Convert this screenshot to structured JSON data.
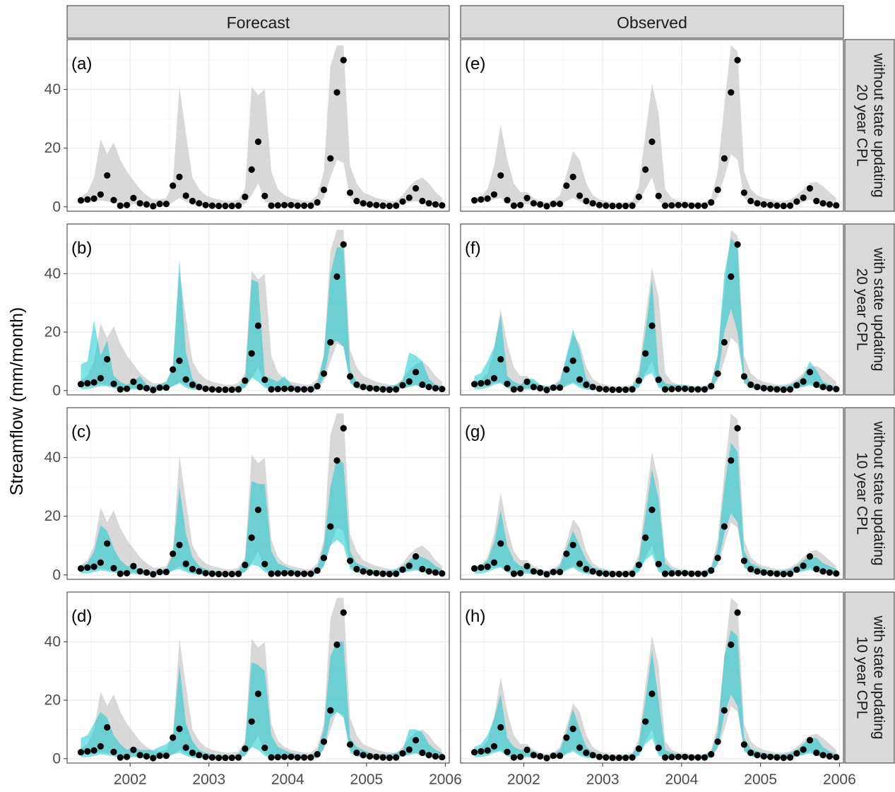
{
  "chart_data": {
    "type": "line",
    "ylabel": "Streamflow (mm/month)",
    "xlabel": "",
    "column_strips": [
      "Forecast",
      "Observed"
    ],
    "row_strips": [
      [
        "without state updating",
        "20 year CPL"
      ],
      [
        "with state updating",
        "20 year CPL"
      ],
      [
        "without state updating",
        "10 year CPL"
      ],
      [
        "with state updating",
        "10 year CPL"
      ]
    ],
    "panel_labels": [
      [
        "(a)",
        "(e)"
      ],
      [
        "(b)",
        "(f)"
      ],
      [
        "(c)",
        "(g)"
      ],
      [
        "(d)",
        "(h)"
      ]
    ],
    "x_ticks": [
      {
        "value": 2002,
        "label": "2002"
      },
      {
        "value": 2003,
        "label": "2003"
      },
      {
        "value": 2004,
        "label": "2004"
      },
      {
        "value": 2005,
        "label": "2005"
      },
      {
        "value": 2006,
        "label": "2006"
      }
    ],
    "y_ticks": [
      {
        "value": 0,
        "label": "0"
      },
      {
        "value": 20,
        "label": "20"
      },
      {
        "value": 40,
        "label": "40"
      }
    ],
    "xlim": [
      2001.2,
      2006.05
    ],
    "ylim": [
      -1.5,
      57
    ],
    "grid": true,
    "x_start": 2001.375,
    "x_step": 0.0833333,
    "observed": [
      2.2,
      2.5,
      2.8,
      4.2,
      10.7,
      2.3,
      0.4,
      0.6,
      3.0,
      1.2,
      0.8,
      0.2,
      1.0,
      1.0,
      7.2,
      10.2,
      3.8,
      2.0,
      1.2,
      0.6,
      0.4,
      0.3,
      0.3,
      0.3,
      0.4,
      3.4,
      12.7,
      22.2,
      3.7,
      0.4,
      0.5,
      0.6,
      0.6,
      0.4,
      0.4,
      0.4,
      1.5,
      5.8,
      16.5,
      39.0,
      50.0,
      4.8,
      2.0,
      1.2,
      0.8,
      0.6,
      0.4,
      0.3,
      0.4,
      1.8,
      3.1,
      6.3,
      2.0,
      1.2,
      0.8,
      0.5
    ],
    "bands": {
      "grey_fc": {
        "lo": [
          1.5,
          1.5,
          1.8,
          2.2,
          1.8,
          1.3,
          0.5,
          0.3,
          1.0,
          0.4,
          0.2,
          0.1,
          0.2,
          0.4,
          1.5,
          3.0,
          1.8,
          0.6,
          0.4,
          0.2,
          0.1,
          0.1,
          0.1,
          0.1,
          0.2,
          1.0,
          4.0,
          8.0,
          2.0,
          0.3,
          0.2,
          0.2,
          0.2,
          0.2,
          0.1,
          0.2,
          0.5,
          3.0,
          10.0,
          16.0,
          15.0,
          3.0,
          1.0,
          0.5,
          0.4,
          0.3,
          0.2,
          0.2,
          0.3,
          1.0,
          1.5,
          2.0,
          1.3,
          0.7,
          0.4,
          0.3
        ],
        "hi": [
          3.5,
          5.0,
          10.0,
          23.0,
          18.0,
          22.0,
          16.0,
          12.0,
          9.0,
          6.0,
          4.0,
          2.5,
          2.5,
          3.0,
          8.0,
          41.0,
          25.0,
          10.0,
          6.0,
          4.0,
          3.0,
          2.5,
          2.0,
          2.0,
          2.5,
          6.0,
          41.0,
          38.0,
          40.0,
          12.0,
          6.0,
          4.0,
          3.0,
          2.5,
          2.0,
          2.0,
          4.0,
          12.0,
          48.0,
          55.0,
          55.0,
          14.0,
          8.0,
          5.0,
          4.0,
          3.0,
          2.5,
          2.0,
          2.0,
          4.0,
          7.0,
          9.0,
          10.0,
          8.0,
          5.0,
          3.0
        ]
      },
      "grey_ob": {
        "lo": [
          1.5,
          1.5,
          1.8,
          2.5,
          3.0,
          1.3,
          0.5,
          0.3,
          1.0,
          0.4,
          0.2,
          0.1,
          0.3,
          0.5,
          2.0,
          3.0,
          1.8,
          0.6,
          0.4,
          0.2,
          0.1,
          0.1,
          0.1,
          0.1,
          0.2,
          1.5,
          6.0,
          10.0,
          2.0,
          0.3,
          0.2,
          0.2,
          0.2,
          0.2,
          0.1,
          0.2,
          0.6,
          3.5,
          10.0,
          18.0,
          16.0,
          3.0,
          1.0,
          0.5,
          0.4,
          0.3,
          0.2,
          0.2,
          0.3,
          1.0,
          1.5,
          2.5,
          1.3,
          0.7,
          0.4,
          0.3
        ],
        "hi": [
          3.0,
          3.5,
          6.0,
          14.0,
          28.0,
          16.0,
          8.0,
          5.0,
          5.0,
          3.0,
          2.0,
          1.5,
          2.0,
          4.0,
          11.0,
          19.0,
          16.0,
          8.0,
          4.0,
          2.5,
          2.0,
          1.5,
          1.5,
          1.5,
          2.0,
          7.0,
          25.0,
          42.0,
          32.0,
          6.0,
          3.0,
          2.0,
          2.0,
          1.5,
          1.5,
          1.5,
          3.0,
          12.0,
          35.0,
          55.0,
          53.0,
          12.0,
          6.0,
          4.0,
          3.0,
          2.5,
          2.0,
          2.0,
          2.5,
          4.0,
          6.0,
          8.0,
          8.5,
          7.0,
          5.0,
          3.0
        ]
      },
      "teal_b": {
        "lo": [
          0.5,
          0.5,
          1.0,
          1.5,
          1.5,
          0.8,
          0.3,
          0.2,
          0.5,
          0.3,
          0.1,
          0.1,
          0.2,
          0.3,
          1.5,
          2.5,
          1.0,
          0.3,
          0.2,
          0.1,
          0.1,
          0.1,
          0.1,
          0.1,
          0.1,
          1.0,
          4.5,
          3.0,
          1.0,
          0.2,
          0.1,
          0.1,
          0.1,
          0.1,
          0.1,
          0.1,
          0.3,
          4.5,
          16.0,
          17.0,
          15.0,
          2.5,
          0.8,
          0.4,
          0.3,
          0.2,
          0.2,
          0.1,
          0.3,
          0.8,
          1.2,
          1.8,
          1.0,
          0.5,
          0.3,
          0.2
        ],
        "hi": [
          9.0,
          10.0,
          24.0,
          12.0,
          17.0,
          5.0,
          3.0,
          2.0,
          3.0,
          5.0,
          2.0,
          1.5,
          2.0,
          3.0,
          8.0,
          45.0,
          13.0,
          4.0,
          2.0,
          1.5,
          1.2,
          1.0,
          1.0,
          1.0,
          1.5,
          3.5,
          38.0,
          37.0,
          5.0,
          4.0,
          3.0,
          5.0,
          2.0,
          1.5,
          1.2,
          1.2,
          2.5,
          12.0,
          40.0,
          49.0,
          49.0,
          7.0,
          3.0,
          2.0,
          2.0,
          1.5,
          1.5,
          1.5,
          2.0,
          3.5,
          13.0,
          12.0,
          10.0,
          4.0,
          2.0,
          1.5
        ]
      },
      "teal_f": {
        "lo": [
          0.5,
          0.5,
          1.0,
          2.0,
          2.5,
          0.8,
          0.3,
          0.2,
          0.5,
          0.3,
          0.1,
          0.1,
          0.2,
          0.3,
          1.5,
          2.5,
          1.0,
          0.3,
          0.2,
          0.1,
          0.1,
          0.1,
          0.1,
          0.1,
          0.1,
          1.0,
          5.0,
          6.0,
          1.0,
          0.2,
          0.1,
          0.1,
          0.1,
          0.1,
          0.1,
          0.1,
          0.3,
          4.5,
          20.0,
          28.0,
          20.0,
          2.5,
          0.8,
          0.4,
          0.3,
          0.2,
          0.2,
          0.1,
          0.3,
          0.8,
          1.2,
          1.8,
          1.0,
          0.5,
          0.3,
          0.2
        ],
        "hi": [
          5.0,
          6.0,
          10.0,
          15.0,
          26.0,
          5.0,
          3.0,
          2.0,
          4.0,
          4.0,
          2.0,
          1.5,
          1.5,
          3.0,
          12.0,
          21.0,
          14.0,
          4.0,
          2.0,
          1.5,
          1.2,
          1.0,
          1.0,
          1.0,
          1.5,
          5.0,
          20.0,
          38.0,
          6.0,
          2.5,
          2.0,
          2.0,
          2.0,
          1.5,
          1.2,
          1.2,
          2.5,
          12.0,
          40.0,
          52.0,
          50.0,
          6.0,
          3.0,
          2.0,
          2.0,
          1.5,
          1.5,
          1.5,
          2.0,
          3.0,
          5.0,
          10.0,
          7.0,
          3.0,
          2.0,
          1.5
        ]
      },
      "teal_c": {
        "lo": [
          0.5,
          0.5,
          1.0,
          1.5,
          1.2,
          0.8,
          0.3,
          0.2,
          0.5,
          0.3,
          0.1,
          0.1,
          0.2,
          0.3,
          1.5,
          2.0,
          1.0,
          0.3,
          0.2,
          0.1,
          0.1,
          0.1,
          0.1,
          0.1,
          0.1,
          1.0,
          3.5,
          3.0,
          1.0,
          0.2,
          0.1,
          0.1,
          0.1,
          0.1,
          0.1,
          0.1,
          0.3,
          3.0,
          10.0,
          12.0,
          10.0,
          2.0,
          0.8,
          0.4,
          0.3,
          0.2,
          0.2,
          0.1,
          0.3,
          0.8,
          1.2,
          1.5,
          1.0,
          0.5,
          0.3,
          0.2
        ],
        "hi": [
          3.0,
          4.0,
          8.0,
          17.0,
          15.0,
          9.0,
          5.0,
          3.0,
          3.0,
          2.0,
          1.5,
          1.2,
          1.5,
          2.0,
          7.0,
          30.0,
          14.0,
          6.0,
          3.0,
          2.0,
          1.5,
          1.2,
          1.0,
          1.0,
          1.5,
          5.0,
          32.0,
          31.0,
          31.0,
          8.0,
          4.0,
          3.0,
          2.0,
          1.5,
          1.2,
          1.2,
          2.5,
          10.0,
          30.0,
          40.0,
          38.0,
          8.0,
          4.0,
          3.0,
          2.0,
          1.5,
          1.5,
          1.5,
          2.0,
          3.0,
          5.0,
          7.0,
          6.0,
          5.0,
          3.0,
          2.0
        ]
      },
      "teal_g": {
        "lo": [
          0.5,
          0.5,
          1.0,
          2.0,
          2.5,
          0.8,
          0.3,
          0.2,
          0.5,
          0.3,
          0.1,
          0.1,
          0.2,
          0.3,
          1.5,
          2.5,
          1.0,
          0.3,
          0.2,
          0.1,
          0.1,
          0.1,
          0.1,
          0.1,
          0.1,
          1.0,
          5.0,
          7.0,
          1.0,
          0.2,
          0.1,
          0.1,
          0.1,
          0.1,
          0.1,
          0.1,
          0.3,
          4.0,
          14.0,
          21.0,
          18.0,
          2.5,
          0.8,
          0.4,
          0.3,
          0.2,
          0.2,
          0.1,
          0.3,
          0.8,
          1.2,
          1.8,
          1.0,
          0.5,
          0.3,
          0.2
        ],
        "hi": [
          2.5,
          3.0,
          5.0,
          11.0,
          22.0,
          10.0,
          5.0,
          3.0,
          3.0,
          2.0,
          1.5,
          1.2,
          1.5,
          3.0,
          9.0,
          15.0,
          10.0,
          5.0,
          2.5,
          2.0,
          1.5,
          1.2,
          1.0,
          1.0,
          1.5,
          5.0,
          20.0,
          36.0,
          26.0,
          4.0,
          2.0,
          1.5,
          1.5,
          1.2,
          1.2,
          1.2,
          2.5,
          9.0,
          30.0,
          45.0,
          42.0,
          8.0,
          4.0,
          3.0,
          2.0,
          1.5,
          1.5,
          1.5,
          2.0,
          3.0,
          5.0,
          6.0,
          6.0,
          4.0,
          3.0,
          2.0
        ]
      },
      "teal_d": {
        "lo": [
          0.5,
          0.5,
          1.0,
          1.5,
          1.2,
          0.8,
          0.3,
          0.2,
          0.5,
          0.3,
          0.1,
          0.1,
          0.2,
          0.3,
          1.5,
          2.0,
          1.0,
          0.3,
          0.2,
          0.1,
          0.1,
          0.1,
          0.1,
          0.1,
          0.1,
          1.0,
          4.0,
          3.0,
          1.0,
          0.2,
          0.1,
          0.1,
          0.1,
          0.1,
          0.1,
          0.1,
          0.3,
          3.5,
          14.0,
          16.0,
          14.0,
          2.0,
          0.8,
          0.4,
          0.3,
          0.2,
          0.2,
          0.1,
          0.3,
          0.8,
          1.2,
          1.8,
          1.0,
          0.5,
          0.3,
          0.2
        ],
        "hi": [
          7.0,
          8.0,
          12.0,
          16.0,
          14.0,
          8.0,
          5.0,
          3.0,
          4.0,
          3.0,
          3.0,
          3.0,
          4.0,
          5.0,
          7.0,
          32.0,
          12.0,
          6.0,
          3.0,
          2.0,
          1.5,
          1.2,
          1.0,
          1.0,
          1.5,
          5.0,
          33.0,
          32.0,
          30.0,
          8.0,
          4.0,
          3.0,
          2.0,
          1.5,
          1.2,
          1.2,
          2.5,
          10.0,
          35.0,
          40.0,
          40.0,
          7.0,
          4.0,
          3.0,
          2.0,
          1.5,
          1.5,
          1.5,
          2.0,
          3.0,
          10.0,
          10.0,
          9.0,
          5.0,
          3.0,
          2.0
        ]
      },
      "teal_h": {
        "lo": [
          0.5,
          0.5,
          1.0,
          2.0,
          2.5,
          0.8,
          0.3,
          0.2,
          0.5,
          0.3,
          0.1,
          0.1,
          0.2,
          0.3,
          1.5,
          2.5,
          1.0,
          0.3,
          0.2,
          0.1,
          0.1,
          0.1,
          0.1,
          0.1,
          0.1,
          1.0,
          5.0,
          7.0,
          1.0,
          0.2,
          0.1,
          0.1,
          0.1,
          0.1,
          0.1,
          0.1,
          0.3,
          4.0,
          15.0,
          22.0,
          18.0,
          2.5,
          0.8,
          0.4,
          0.3,
          0.2,
          0.2,
          0.1,
          0.3,
          0.8,
          1.2,
          1.8,
          1.0,
          0.5,
          0.3,
          0.2
        ],
        "hi": [
          4.0,
          5.0,
          8.0,
          14.0,
          22.0,
          7.0,
          4.0,
          3.0,
          3.0,
          2.5,
          1.5,
          1.2,
          1.5,
          3.0,
          9.0,
          17.0,
          10.0,
          4.0,
          2.0,
          1.5,
          1.2,
          1.0,
          1.0,
          1.0,
          1.5,
          5.0,
          20.0,
          37.0,
          20.0,
          3.0,
          2.0,
          1.5,
          1.5,
          1.2,
          1.2,
          1.2,
          2.5,
          9.0,
          35.0,
          44.0,
          42.0,
          7.0,
          3.5,
          2.5,
          2.0,
          1.5,
          1.5,
          1.5,
          2.0,
          3.0,
          5.0,
          7.0,
          7.0,
          4.0,
          2.5,
          1.5
        ]
      }
    },
    "panels": [
      [
        {
          "grey": "grey_fc",
          "teal": null
        },
        {
          "grey": "grey_ob",
          "teal": null
        }
      ],
      [
        {
          "grey": "grey_fc",
          "teal": "teal_b"
        },
        {
          "grey": "grey_ob",
          "teal": "teal_f"
        }
      ],
      [
        {
          "grey": "grey_fc",
          "teal": "teal_c"
        },
        {
          "grey": "grey_ob",
          "teal": "teal_g"
        }
      ],
      [
        {
          "grey": "grey_fc",
          "teal": "teal_d"
        },
        {
          "grey": "grey_ob",
          "teal": "teal_h"
        }
      ]
    ]
  },
  "colors": {
    "grey_band": "#c8c8c8",
    "teal_band": "#00c5c9",
    "point": "#000000",
    "strip_fill": "#d9d9d9",
    "grid": "#ebebeb",
    "panel_border": "#333333"
  }
}
